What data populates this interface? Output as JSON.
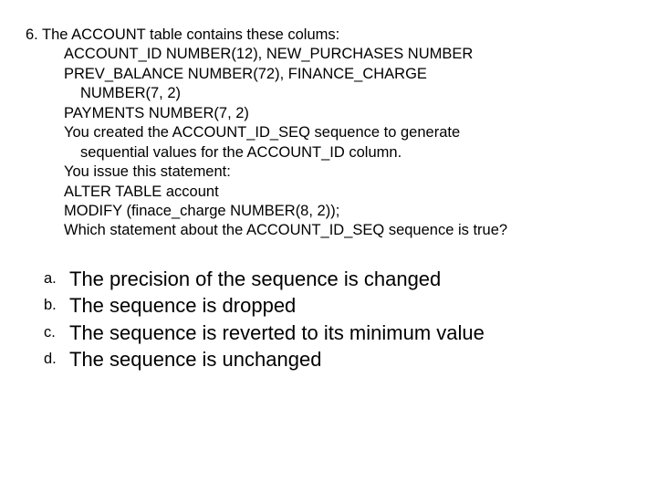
{
  "question": {
    "number_line": "6. The ACCOUNT table contains these colums:",
    "lines": [
      "ACCOUNT_ID NUMBER(12), NEW_PURCHASES NUMBER",
      "PREV_BALANCE NUMBER(72), FINANCE_CHARGE"
    ],
    "deep_line": "NUMBER(7, 2)",
    "lines2": [
      "PAYMENTS NUMBER(7, 2)",
      "You created the ACCOUNT_ID_SEQ sequence to generate"
    ],
    "deep_line2": "sequential values for the ACCOUNT_ID column.",
    "lines3": [
      "You issue this statement:",
      "ALTER TABLE account",
      "MODIFY (finace_charge NUMBER(8, 2));",
      "Which statement about the ACCOUNT_ID_SEQ sequence is true?"
    ]
  },
  "answers": [
    {
      "label": "a.",
      "text": "The precision of the sequence is changed"
    },
    {
      "label": "b.",
      "text": "The sequence is dropped"
    },
    {
      "label": "c.",
      "text": "The sequence is reverted to its minimum value"
    },
    {
      "label": "d.",
      "text": "The sequence is unchanged"
    }
  ],
  "colors": {
    "background": "#ffffff",
    "text": "#000000"
  },
  "typography": {
    "question_fontsize": 16.5,
    "answer_label_fontsize": 16.5,
    "answer_text_fontsize": 22,
    "font_family": "Arial"
  }
}
